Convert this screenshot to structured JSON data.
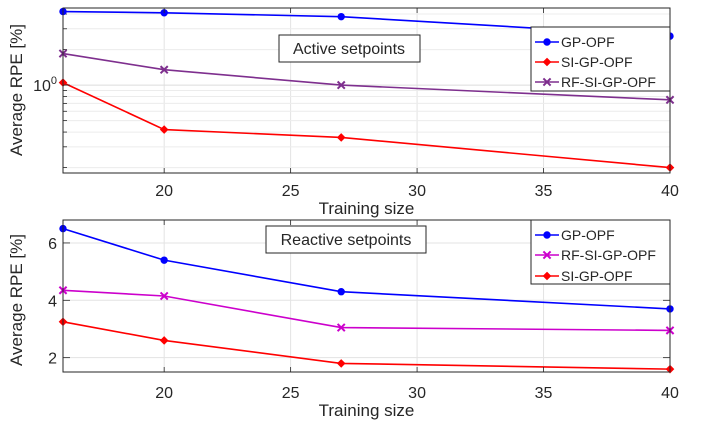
{
  "chart_data": [
    {
      "type": "line",
      "title": "",
      "annotation": "Active setpoints",
      "xlabel": "Training size",
      "ylabel": "Average RPE [%]",
      "xlim": [
        16,
        40
      ],
      "ylim": [
        0.18,
        4.5
      ],
      "yscale": "log",
      "x_ticks": [
        20,
        25,
        30,
        35,
        40
      ],
      "y_ticks": [
        {
          "value": 1,
          "base": "10",
          "exp": "0"
        }
      ],
      "grid": true,
      "legend_position": "top-right",
      "series": [
        {
          "name": "GP-OPF",
          "color": "#0000ff",
          "marker": "dot",
          "x": [
            16,
            20,
            27,
            40
          ],
          "y": [
            4.2,
            4.1,
            3.8,
            2.6
          ]
        },
        {
          "name": "SI-GP-OPF",
          "color": "#ff0000",
          "marker": "diamond",
          "x": [
            16,
            20,
            27,
            40
          ],
          "y": [
            1.05,
            0.42,
            0.36,
            0.2
          ]
        },
        {
          "name": "RF-SI-GP-OPF",
          "color": "#7e2f8e",
          "marker": "x",
          "x": [
            16,
            20,
            27,
            40
          ],
          "y": [
            1.85,
            1.35,
            1.0,
            0.75
          ]
        }
      ]
    },
    {
      "type": "line",
      "title": "",
      "annotation": "Reactive setpoints",
      "xlabel": "Training size",
      "ylabel": "Average RPE [%]",
      "xlim": [
        16,
        40
      ],
      "ylim": [
        1.5,
        6.8
      ],
      "yscale": "linear",
      "x_ticks": [
        20,
        25,
        30,
        35,
        40
      ],
      "y_ticks": [
        {
          "value": 2,
          "label": "2"
        },
        {
          "value": 4,
          "label": "4"
        },
        {
          "value": 6,
          "label": "6"
        }
      ],
      "grid": true,
      "legend_position": "top-right",
      "series": [
        {
          "name": "GP-OPF",
          "color": "#0000ff",
          "marker": "dot",
          "x": [
            16,
            20,
            27,
            40
          ],
          "y": [
            6.5,
            5.4,
            4.3,
            3.7
          ]
        },
        {
          "name": "RF-SI-GP-OPF",
          "color": "#cc00cc",
          "marker": "x",
          "x": [
            16,
            20,
            27,
            40
          ],
          "y": [
            4.35,
            4.15,
            3.05,
            2.95
          ]
        },
        {
          "name": "SI-GP-OPF",
          "color": "#ff0000",
          "marker": "diamond",
          "x": [
            16,
            20,
            27,
            40
          ],
          "y": [
            3.25,
            2.6,
            1.8,
            1.6
          ]
        }
      ]
    }
  ]
}
